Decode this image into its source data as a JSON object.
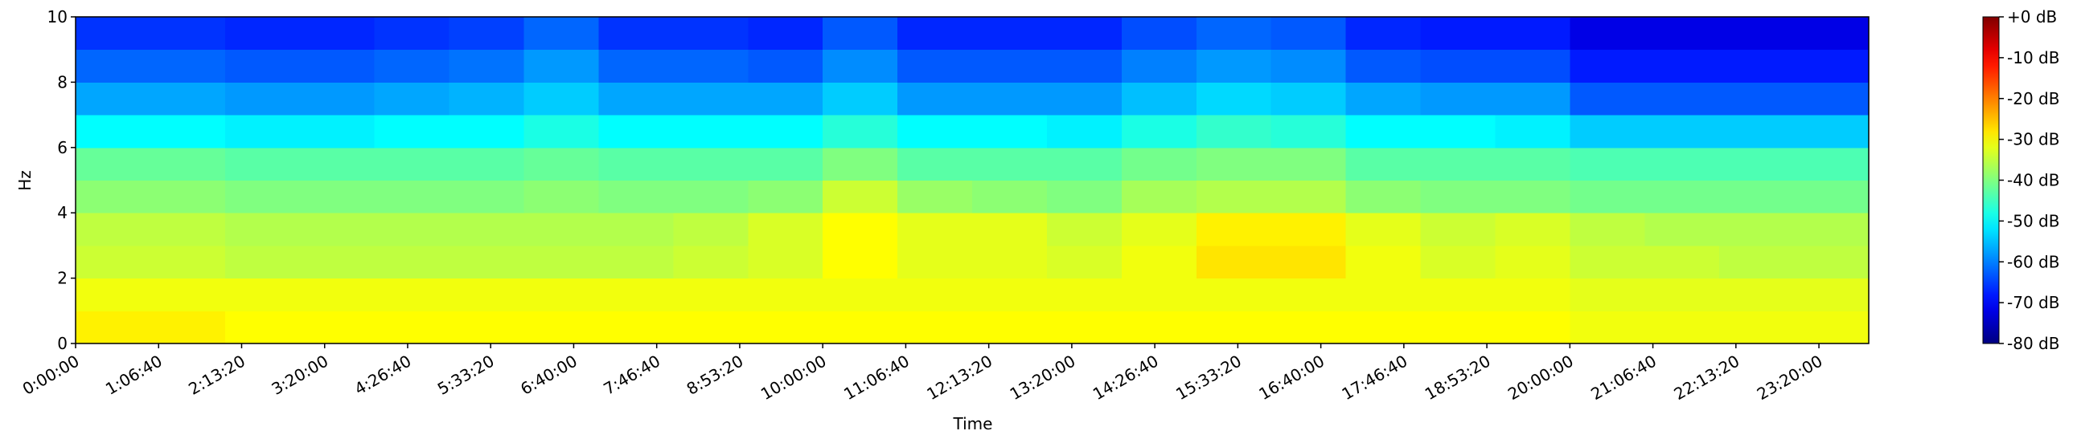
{
  "chart_data": {
    "type": "heatmap",
    "xlabel": "Time",
    "ylabel": "Hz",
    "xlim": [
      0,
      86400
    ],
    "ylim": [
      0,
      10
    ],
    "xticks": [
      {
        "value": 0,
        "label": "0:00:00"
      },
      {
        "value": 4000,
        "label": "1:06:40"
      },
      {
        "value": 8000,
        "label": "2:13:20"
      },
      {
        "value": 12000,
        "label": "3:20:00"
      },
      {
        "value": 16000,
        "label": "4:26:40"
      },
      {
        "value": 20000,
        "label": "5:33:20"
      },
      {
        "value": 24000,
        "label": "6:40:00"
      },
      {
        "value": 28000,
        "label": "7:46:40"
      },
      {
        "value": 32000,
        "label": "8:53:20"
      },
      {
        "value": 36000,
        "label": "10:00:00"
      },
      {
        "value": 40000,
        "label": "11:06:40"
      },
      {
        "value": 44000,
        "label": "12:13:20"
      },
      {
        "value": 48000,
        "label": "13:20:00"
      },
      {
        "value": 52000,
        "label": "14:26:40"
      },
      {
        "value": 56000,
        "label": "15:33:20"
      },
      {
        "value": 60000,
        "label": "16:40:00"
      },
      {
        "value": 64000,
        "label": "17:46:40"
      },
      {
        "value": 68000,
        "label": "18:53:20"
      },
      {
        "value": 72000,
        "label": "20:00:00"
      },
      {
        "value": 76000,
        "label": "21:06:40"
      },
      {
        "value": 80000,
        "label": "22:13:20"
      },
      {
        "value": 84000,
        "label": "23:20:00"
      }
    ],
    "yticks": [
      0,
      2,
      4,
      6,
      8,
      10
    ],
    "colormap": "jet",
    "zlim": [
      -80,
      0
    ],
    "zticks": [
      {
        "value": 0,
        "label": "+0 dB"
      },
      {
        "value": -10,
        "label": "-10 dB"
      },
      {
        "value": -20,
        "label": "-20 dB"
      },
      {
        "value": -30,
        "label": "-30 dB"
      },
      {
        "value": -40,
        "label": "-40 dB"
      },
      {
        "value": -50,
        "label": "-50 dB"
      },
      {
        "value": -60,
        "label": "-60 dB"
      },
      {
        "value": -70,
        "label": "-70 dB"
      },
      {
        "value": -80,
        "label": "-80 dB"
      }
    ],
    "x_bins": [
      0,
      3600,
      7200,
      10800,
      14400,
      18000,
      21600,
      25200,
      28800,
      32400,
      36000,
      39600,
      43200,
      46800,
      50400,
      54000,
      57600,
      61200,
      64800,
      68400,
      72000,
      75600,
      79200,
      82800,
      86400
    ],
    "y_bins": [
      0,
      1,
      2,
      3,
      4,
      5,
      6,
      7,
      8,
      9,
      10
    ],
    "z": [
      [
        -29,
        -29,
        -30,
        -30,
        -30,
        -30,
        -30,
        -30,
        -30,
        -30,
        -30,
        -30,
        -30,
        -30,
        -30,
        -30,
        -30,
        -30,
        -30,
        -30,
        -31,
        -31,
        -31,
        -31
      ],
      [
        -31,
        -31,
        -31,
        -31,
        -31,
        -31,
        -31,
        -31,
        -31,
        -31,
        -31,
        -31,
        -31,
        -31,
        -31,
        -31,
        -31,
        -31,
        -31,
        -31,
        -32,
        -32,
        -32,
        -32
      ],
      [
        -34,
        -34,
        -35,
        -35,
        -35,
        -35,
        -35,
        -35,
        -34,
        -33,
        -30,
        -32,
        -32,
        -33,
        -31,
        -28,
        -28,
        -31,
        -33,
        -32,
        -34,
        -34,
        -35,
        -35
      ],
      [
        -35,
        -35,
        -36,
        -36,
        -36,
        -36,
        -36,
        -36,
        -35,
        -33,
        -30,
        -32,
        -32,
        -34,
        -32,
        -29,
        -29,
        -32,
        -34,
        -33,
        -35,
        -36,
        -36,
        -36
      ],
      [
        -39,
        -39,
        -40,
        -40,
        -40,
        -40,
        -39,
        -40,
        -40,
        -39,
        -34,
        -38,
        -39,
        -40,
        -37,
        -36,
        -36,
        -39,
        -40,
        -40,
        -41,
        -41,
        -41,
        -41
      ],
      [
        -42,
        -42,
        -43,
        -43,
        -43,
        -43,
        -42,
        -43,
        -43,
        -43,
        -40,
        -43,
        -43,
        -43,
        -41,
        -40,
        -40,
        -43,
        -43,
        -43,
        -44,
        -44,
        -44,
        -44
      ],
      [
        -50,
        -50,
        -51,
        -51,
        -50,
        -50,
        -48,
        -50,
        -50,
        -50,
        -47,
        -50,
        -50,
        -51,
        -48,
        -46,
        -47,
        -50,
        -50,
        -51,
        -54,
        -54,
        -54,
        -54
      ],
      [
        -57,
        -57,
        -58,
        -58,
        -57,
        -56,
        -54,
        -57,
        -57,
        -57,
        -54,
        -58,
        -58,
        -58,
        -55,
        -53,
        -54,
        -57,
        -58,
        -58,
        -63,
        -63,
        -63,
        -63
      ],
      [
        -62,
        -62,
        -63,
        -63,
        -62,
        -61,
        -58,
        -62,
        -62,
        -63,
        -59,
        -63,
        -63,
        -63,
        -60,
        -58,
        -59,
        -63,
        -64,
        -64,
        -68,
        -68,
        -68,
        -68
      ],
      [
        -66,
        -66,
        -67,
        -67,
        -66,
        -65,
        -62,
        -66,
        -66,
        -67,
        -63,
        -67,
        -67,
        -67,
        -64,
        -62,
        -63,
        -67,
        -68,
        -68,
        -72,
        -72,
        -72,
        -72
      ]
    ]
  }
}
